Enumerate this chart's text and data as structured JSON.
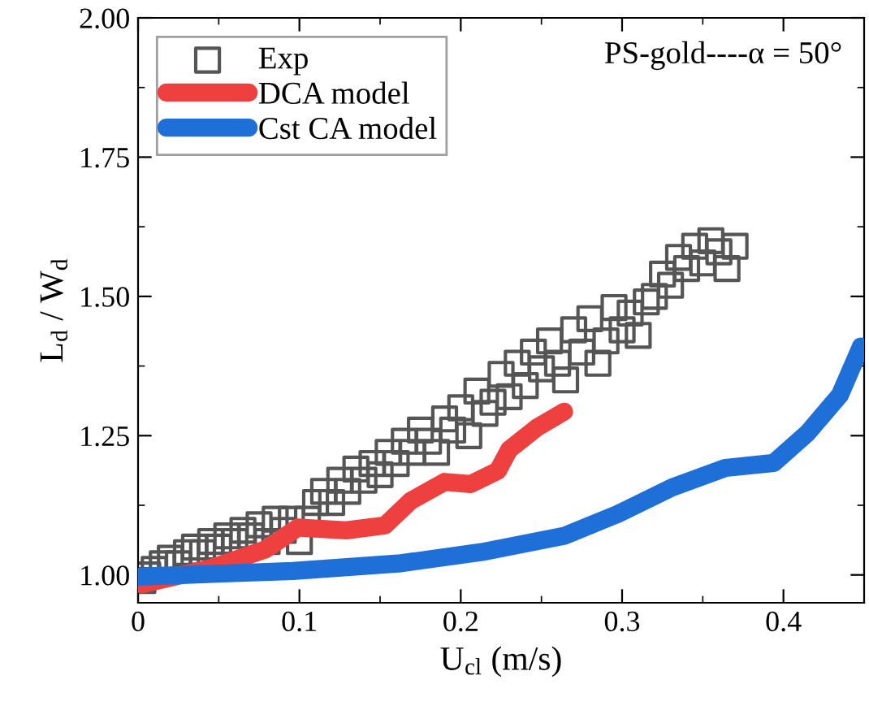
{
  "chart_data": {
    "type": "line",
    "xlabel": "U$_{cl}$ (m/s)",
    "ylabel": "L$_{d}$ / W$_{d}$",
    "annotations": [
      "PS-gold----α = 50°"
    ],
    "xlim": [
      0,
      0.45
    ],
    "ylim": [
      0.95,
      2.0
    ],
    "xticks": [
      0,
      0.1,
      0.2,
      0.3,
      0.4
    ],
    "yticks": [
      {
        "value": 1.0,
        "label": "1.00"
      },
      {
        "value": 1.25,
        "label": "1.25"
      },
      {
        "value": 1.5,
        "label": "1.50"
      },
      {
        "value": 1.75,
        "label": "1.75"
      },
      {
        "value": 2.0,
        "label": "2.00"
      }
    ],
    "grid": false,
    "legend": "top left",
    "series": [
      {
        "name": "Exp",
        "type": "scatter",
        "marker": "square",
        "color": "#555555",
        "x": [
          0.003,
          0.006,
          0.01,
          0.015,
          0.02,
          0.025,
          0.03,
          0.035,
          0.04,
          0.045,
          0.05,
          0.055,
          0.06,
          0.065,
          0.07,
          0.075,
          0.08,
          0.085,
          0.09,
          0.095,
          0.1,
          0.105,
          0.11,
          0.115,
          0.12,
          0.125,
          0.13,
          0.135,
          0.14,
          0.145,
          0.15,
          0.155,
          0.16,
          0.165,
          0.17,
          0.175,
          0.18,
          0.185,
          0.19,
          0.195,
          0.2,
          0.205,
          0.21,
          0.215,
          0.22,
          0.225,
          0.23,
          0.235,
          0.24,
          0.245,
          0.25,
          0.255,
          0.26,
          0.265,
          0.27,
          0.275,
          0.28,
          0.285,
          0.29,
          0.295,
          0.3,
          0.305,
          0.31,
          0.315,
          0.32,
          0.325,
          0.33,
          0.335,
          0.34,
          0.345,
          0.35,
          0.355,
          0.36,
          0.365,
          0.37
        ],
        "values": [
          0.99,
          1.0,
          1.01,
          1.02,
          1.03,
          1.02,
          1.04,
          1.05,
          1.04,
          1.06,
          1.05,
          1.07,
          1.06,
          1.08,
          1.07,
          1.09,
          1.06,
          1.1,
          1.08,
          1.1,
          1.06,
          1.1,
          1.13,
          1.15,
          1.13,
          1.17,
          1.15,
          1.19,
          1.17,
          1.2,
          1.18,
          1.22,
          1.2,
          1.24,
          1.22,
          1.26,
          1.24,
          1.22,
          1.28,
          1.26,
          1.3,
          1.25,
          1.33,
          1.29,
          1.31,
          1.36,
          1.32,
          1.38,
          1.34,
          1.4,
          1.37,
          1.42,
          1.38,
          1.35,
          1.44,
          1.4,
          1.46,
          1.38,
          1.42,
          1.48,
          1.44,
          1.47,
          1.43,
          1.49,
          1.5,
          1.54,
          1.52,
          1.57,
          1.55,
          1.59,
          1.56,
          1.6,
          1.58,
          1.55,
          1.59
        ]
      },
      {
        "name": "DCA model",
        "color": "#ef4040",
        "x": [
          0.002,
          0.045,
          0.079,
          0.099,
          0.129,
          0.153,
          0.169,
          0.19,
          0.206,
          0.223,
          0.23,
          0.247,
          0.264
        ],
        "values": [
          0.983,
          1.012,
          1.046,
          1.085,
          1.08,
          1.089,
          1.133,
          1.167,
          1.163,
          1.187,
          1.225,
          1.264,
          1.293
        ]
      },
      {
        "name": "Cst CA model",
        "color": "#1f6fd8",
        "x": [
          0.0,
          0.096,
          0.163,
          0.213,
          0.264,
          0.297,
          0.331,
          0.364,
          0.394,
          0.415,
          0.435,
          0.448
        ],
        "values": [
          0.997,
          1.007,
          1.021,
          1.041,
          1.07,
          1.109,
          1.157,
          1.192,
          1.201,
          1.255,
          1.323,
          1.41
        ]
      }
    ]
  }
}
